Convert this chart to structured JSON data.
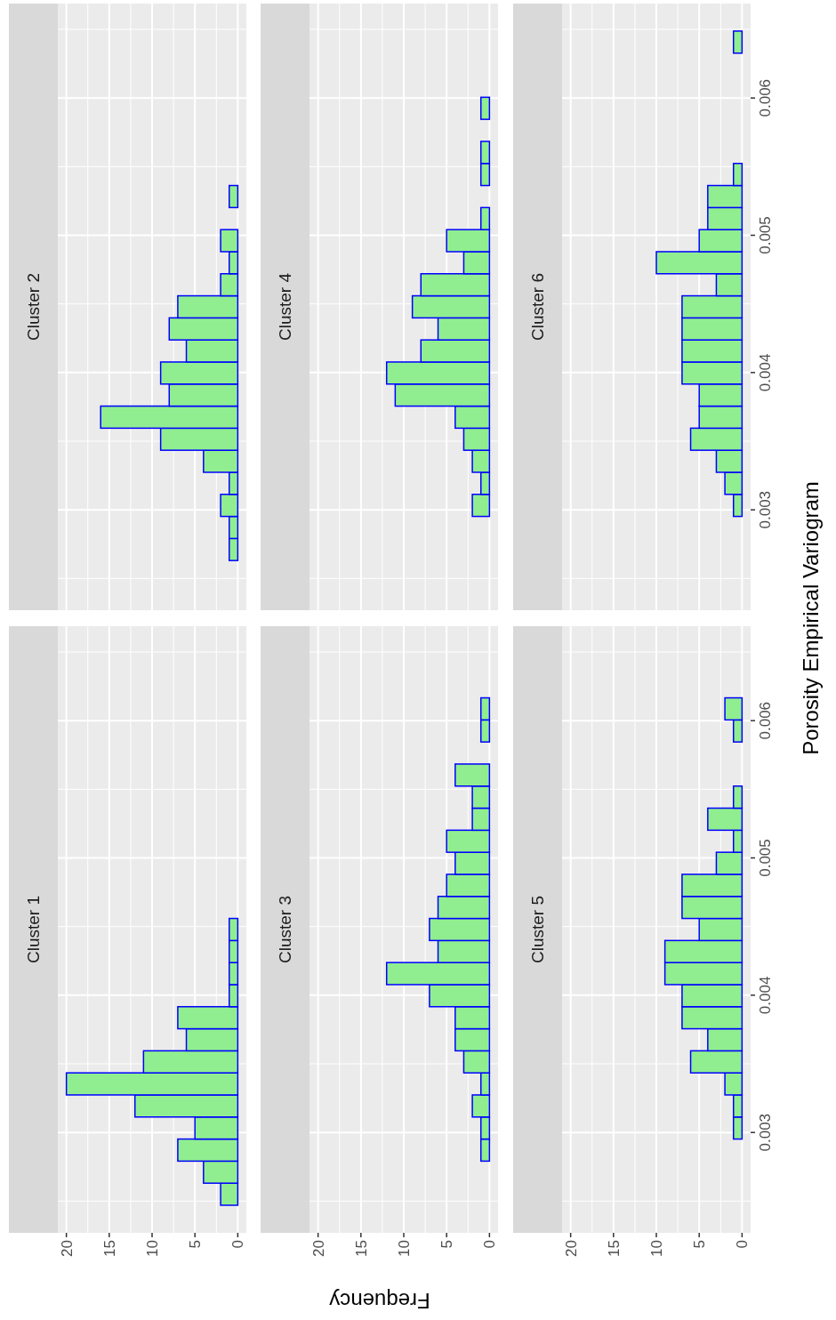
{
  "chart_data": [
    {
      "type": "histogram",
      "orientation": "horizontal",
      "title": "Cluster 2",
      "bins": [
        0.00247,
        0.0026307,
        0.0027914,
        0.0029521,
        0.0031128,
        0.0032735,
        0.0034342,
        0.0035949,
        0.0037556,
        0.0039163,
        0.004077,
        0.0042377,
        0.0043984,
        0.0045591,
        0.0047198,
        0.0048805,
        0.0050412,
        0.0052019,
        0.0053626,
        0.0055233,
        0.005684,
        0.0058447,
        0.0060054,
        0.0061661,
        0.0063268,
        0.0064875
      ],
      "values": [
        0,
        1,
        1,
        2,
        1,
        4,
        9,
        16,
        8,
        9,
        6,
        8,
        7,
        2,
        1,
        2,
        0,
        1,
        0,
        0,
        0,
        0,
        0,
        0,
        0
      ],
      "color": "#90ee90",
      "xlim": [
        21,
        -1
      ],
      "ylim": [
        0.002269,
        0.006688
      ],
      "xticks": [
        20,
        15,
        10,
        5,
        0
      ],
      "yticks": [
        0.003,
        0.004,
        0.005,
        0.006
      ],
      "grid": true,
      "tick_labels": false
    },
    {
      "type": "histogram",
      "orientation": "horizontal",
      "title": "Cluster 4",
      "bins": [
        0.00247,
        0.0026307,
        0.0027914,
        0.0029521,
        0.0031128,
        0.0032735,
        0.0034342,
        0.0035949,
        0.0037556,
        0.0039163,
        0.004077,
        0.0042377,
        0.0043984,
        0.0045591,
        0.0047198,
        0.0048805,
        0.0050412,
        0.0052019,
        0.0053626,
        0.0055233,
        0.005684,
        0.0058447,
        0.0060054,
        0.0061661,
        0.0063268,
        0.0064875
      ],
      "values": [
        0,
        0,
        0,
        2,
        1,
        2,
        3,
        4,
        11,
        12,
        8,
        6,
        9,
        8,
        3,
        5,
        1,
        0,
        1,
        1,
        0,
        1,
        0,
        0,
        0
      ],
      "color": "#90ee90",
      "xlim": [
        21,
        -1
      ],
      "ylim": [
        0.002269,
        0.006688
      ],
      "xticks": [
        20,
        15,
        10,
        5,
        0
      ],
      "yticks": [
        0.003,
        0.004,
        0.005,
        0.006
      ],
      "grid": true,
      "tick_labels": false
    },
    {
      "type": "histogram",
      "orientation": "horizontal",
      "title": "Cluster 6",
      "bins": [
        0.00247,
        0.0026307,
        0.0027914,
        0.0029521,
        0.0031128,
        0.0032735,
        0.0034342,
        0.0035949,
        0.0037556,
        0.0039163,
        0.004077,
        0.0042377,
        0.0043984,
        0.0045591,
        0.0047198,
        0.0048805,
        0.0050412,
        0.0052019,
        0.0053626,
        0.0055233,
        0.005684,
        0.0058447,
        0.0060054,
        0.0061661,
        0.0063268,
        0.0064875
      ],
      "values": [
        0,
        0,
        0,
        1,
        2,
        3,
        6,
        5,
        5,
        7,
        7,
        7,
        7,
        3,
        10,
        5,
        4,
        4,
        1,
        0,
        0,
        0,
        0,
        0,
        1
      ],
      "color": "#90ee90",
      "xlim": [
        21,
        -1
      ],
      "ylim": [
        0.002269,
        0.006688
      ],
      "xticks": [
        20,
        15,
        10,
        5,
        0
      ],
      "yticks": [
        0.003,
        0.004,
        0.005,
        0.006
      ],
      "grid": true,
      "tick_labels": "y"
    },
    {
      "type": "histogram",
      "orientation": "horizontal",
      "title": "Cluster 1",
      "bins": [
        0.00247,
        0.0026307,
        0.0027914,
        0.0029521,
        0.0031128,
        0.0032735,
        0.0034342,
        0.0035949,
        0.0037556,
        0.0039163,
        0.004077,
        0.0042377,
        0.0043984,
        0.0045591,
        0.0047198,
        0.0048805,
        0.0050412,
        0.0052019,
        0.0053626,
        0.0055233,
        0.005684,
        0.0058447,
        0.0060054,
        0.0061661,
        0.0063268,
        0.0064875
      ],
      "values": [
        2,
        4,
        7,
        5,
        12,
        20,
        11,
        6,
        7,
        1,
        1,
        1,
        1,
        0,
        0,
        0,
        0,
        0,
        0,
        0,
        0,
        0,
        0,
        0,
        0
      ],
      "color": "#90ee90",
      "xlim": [
        21,
        -1
      ],
      "ylim": [
        0.002269,
        0.006688
      ],
      "xticks": [
        20,
        15,
        10,
        5,
        0
      ],
      "yticks": [
        0.003,
        0.004,
        0.005,
        0.006
      ],
      "grid": true,
      "tick_labels": "x"
    },
    {
      "type": "histogram",
      "orientation": "horizontal",
      "title": "Cluster 3",
      "xlabel": "Frequency",
      "bins": [
        0.00247,
        0.0026307,
        0.0027914,
        0.0029521,
        0.0031128,
        0.0032735,
        0.0034342,
        0.0035949,
        0.0037556,
        0.0039163,
        0.004077,
        0.0042377,
        0.0043984,
        0.0045591,
        0.0047198,
        0.0048805,
        0.0050412,
        0.0052019,
        0.0053626,
        0.0055233,
        0.005684,
        0.0058447,
        0.0060054,
        0.0061661,
        0.0063268,
        0.0064875
      ],
      "values": [
        0,
        0,
        1,
        1,
        2,
        1,
        3,
        4,
        4,
        7,
        12,
        6,
        7,
        6,
        5,
        4,
        5,
        2,
        2,
        4,
        0,
        1,
        1,
        0,
        0
      ],
      "color": "#90ee90",
      "xlim": [
        21,
        -1
      ],
      "ylim": [
        0.002269,
        0.006688
      ],
      "xticks": [
        20,
        15,
        10,
        5,
        0
      ],
      "yticks": [
        0.003,
        0.004,
        0.005,
        0.006
      ],
      "grid": true,
      "tick_labels": "x"
    },
    {
      "type": "histogram",
      "orientation": "horizontal",
      "title": "Cluster 5",
      "ylabel": "Porosity Empirical Variogram",
      "bins": [
        0.00247,
        0.0026307,
        0.0027914,
        0.0029521,
        0.0031128,
        0.0032735,
        0.0034342,
        0.0035949,
        0.0037556,
        0.0039163,
        0.004077,
        0.0042377,
        0.0043984,
        0.0045591,
        0.0047198,
        0.0048805,
        0.0050412,
        0.0052019,
        0.0053626,
        0.0055233,
        0.005684,
        0.0058447,
        0.0060054,
        0.0061661,
        0.0063268,
        0.0064875
      ],
      "values": [
        0,
        0,
        0,
        1,
        1,
        2,
        6,
        4,
        7,
        7,
        9,
        9,
        5,
        7,
        7,
        3,
        1,
        4,
        1,
        0,
        0,
        1,
        2,
        0,
        0
      ],
      "color": "#90ee90",
      "xlim": [
        21,
        -1
      ],
      "ylim": [
        0.002269,
        0.006688
      ],
      "xticks": [
        20,
        15,
        10,
        5,
        0
      ],
      "yticks": [
        0.003,
        0.004,
        0.005,
        0.006
      ],
      "grid": true
    }
  ]
}
